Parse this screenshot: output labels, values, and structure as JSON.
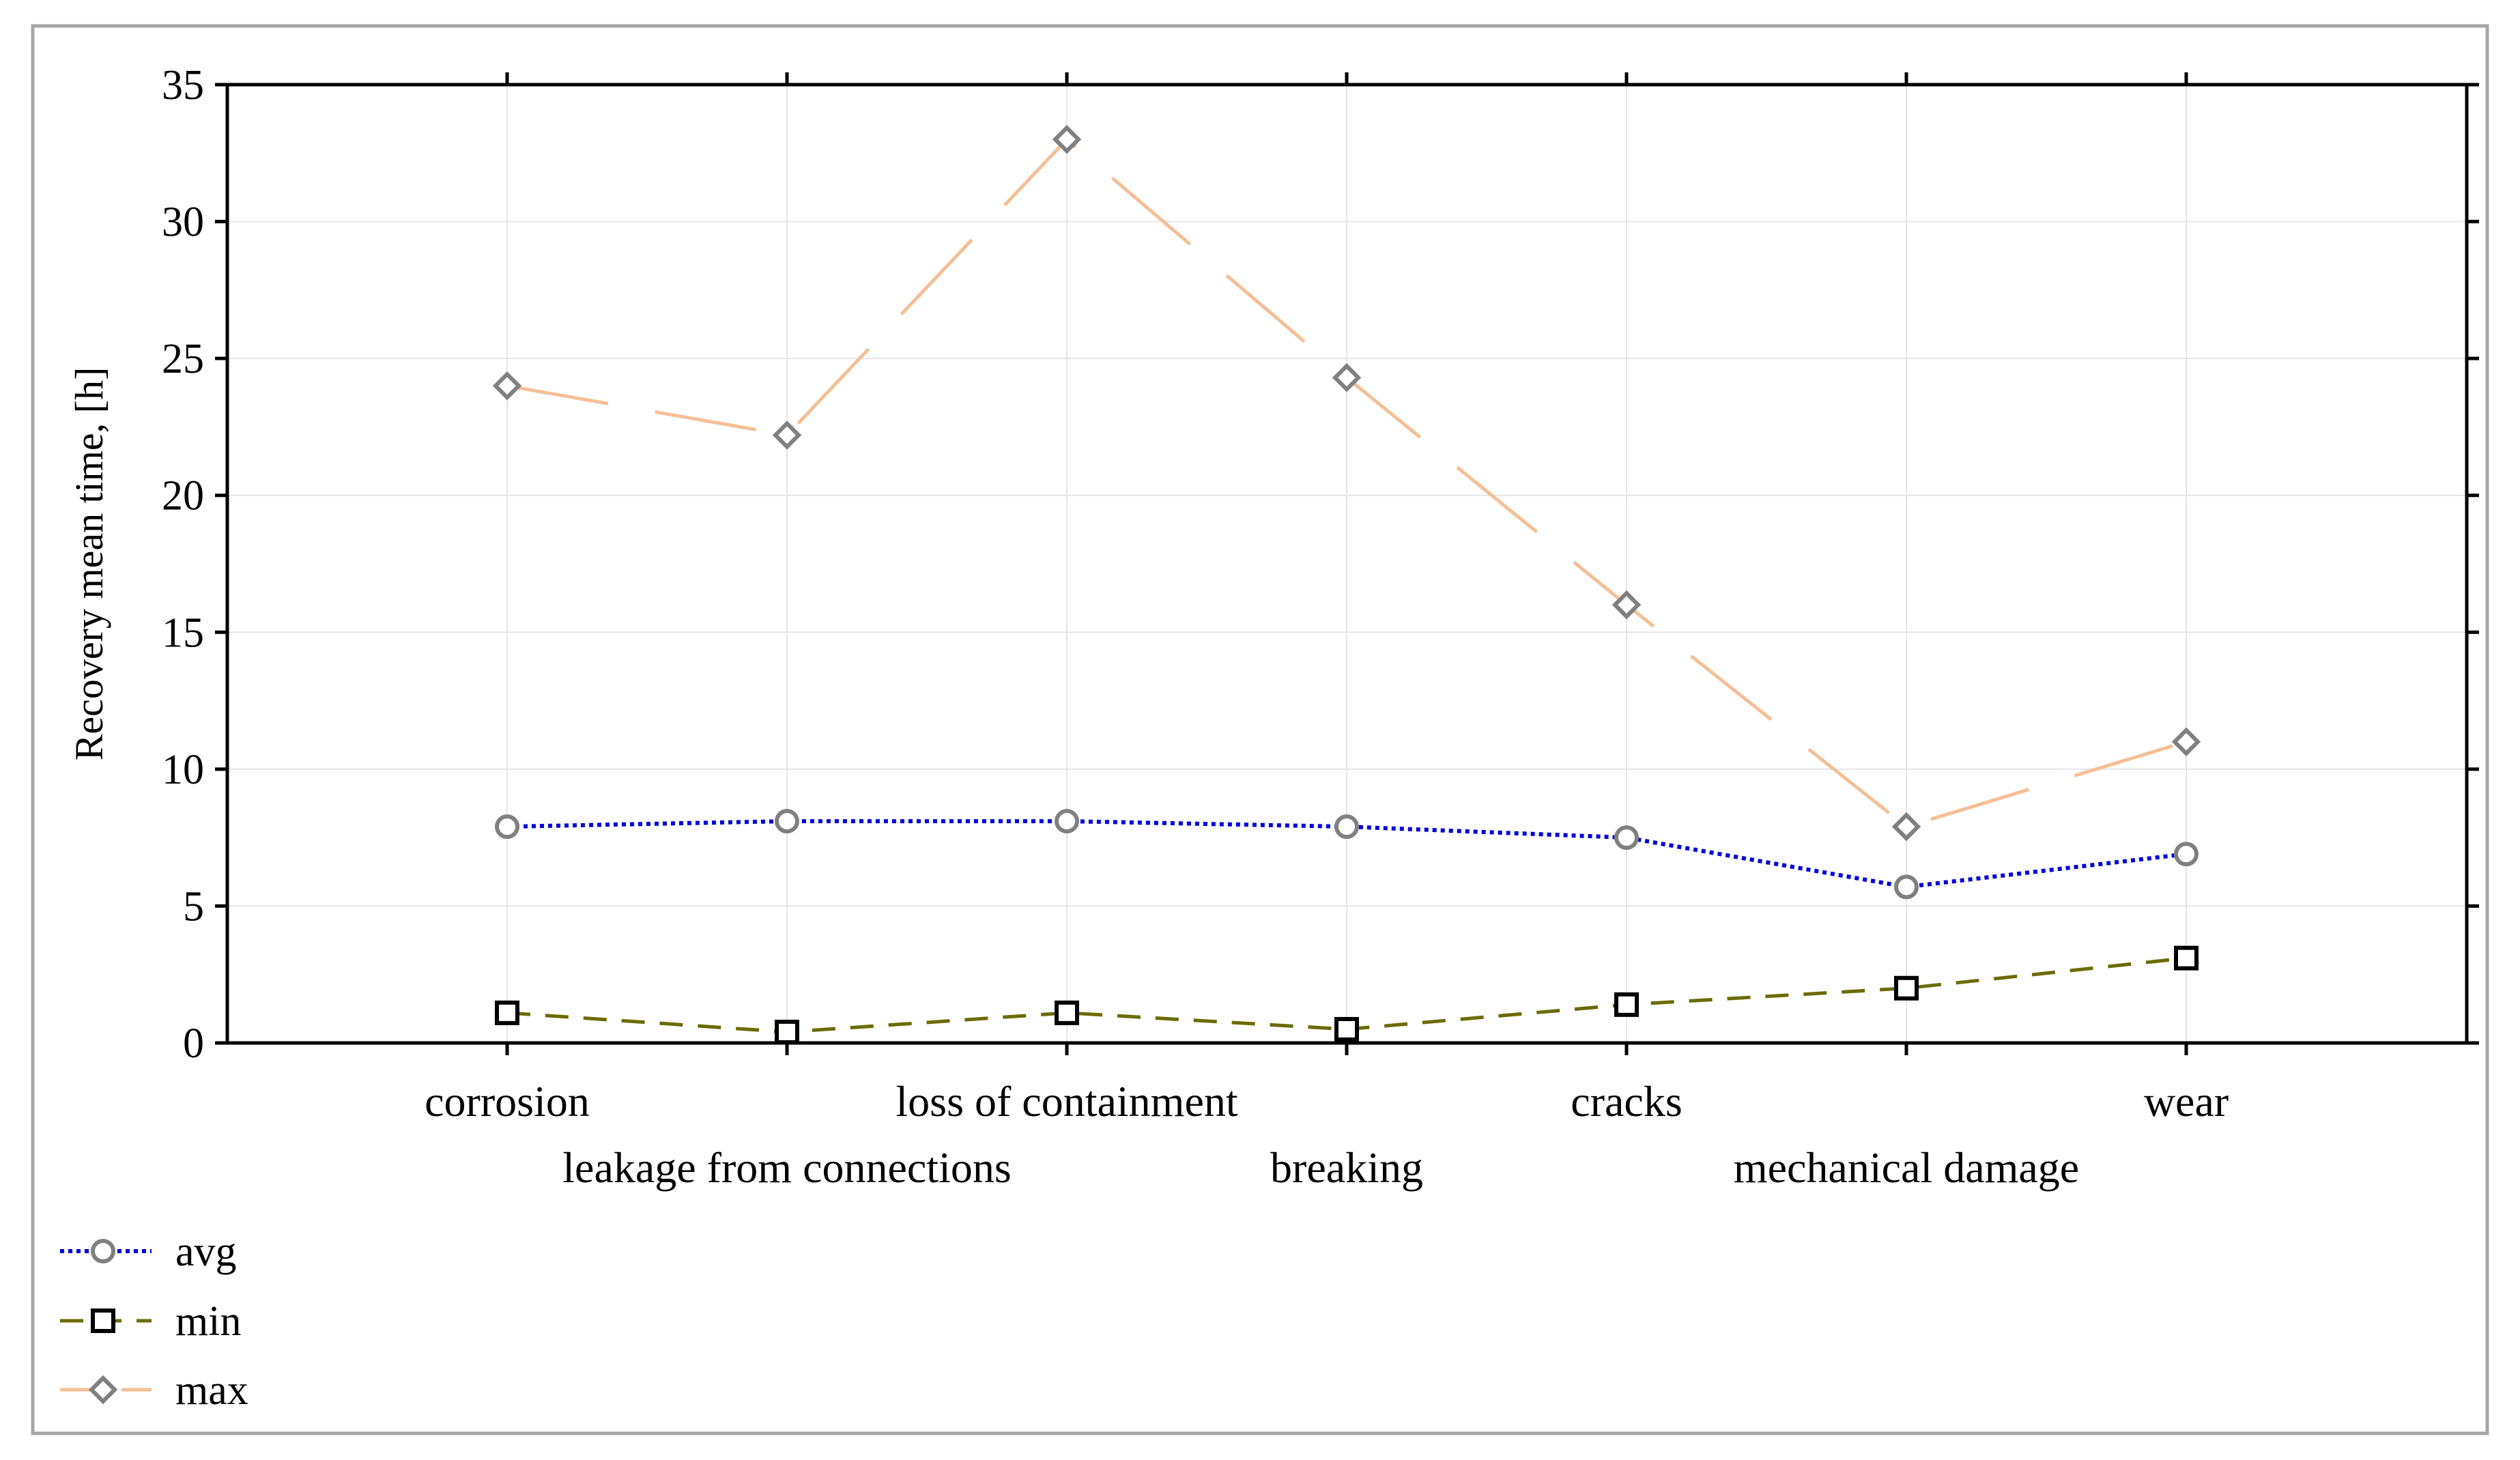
{
  "chart_data": {
    "type": "line",
    "title": "",
    "xlabel": "",
    "ylabel": "Recovery mean time, [h]",
    "ylim": [
      0,
      35
    ],
    "yticks": [
      0,
      5,
      10,
      15,
      20,
      25,
      30,
      35
    ],
    "grid": true,
    "legend_position": "bottom-left",
    "categories": [
      "corrosion",
      "leakage from connections",
      "loss of containment",
      "breaking",
      "cracks",
      "mechanical damage",
      "wear"
    ],
    "series": [
      {
        "name": "avg",
        "values": [
          7.9,
          8.1,
          8.1,
          7.9,
          7.5,
          5.7,
          6.9
        ],
        "color": "#0000dd",
        "marker": "circle",
        "dash": "dotted"
      },
      {
        "name": "min",
        "values": [
          1.1,
          0.4,
          1.1,
          0.5,
          1.4,
          2.0,
          3.1
        ],
        "color": "#6b6b00",
        "marker": "square",
        "dash": "dashed"
      },
      {
        "name": "max",
        "values": [
          24.0,
          22.2,
          33.0,
          24.3,
          16.0,
          7.9,
          11.0
        ],
        "color": "#f5bf96",
        "marker": "diamond",
        "dash": "long-dash"
      }
    ],
    "marker_colors": {
      "circle": "#808080",
      "square": "#000000",
      "diamond": "#808080"
    }
  }
}
